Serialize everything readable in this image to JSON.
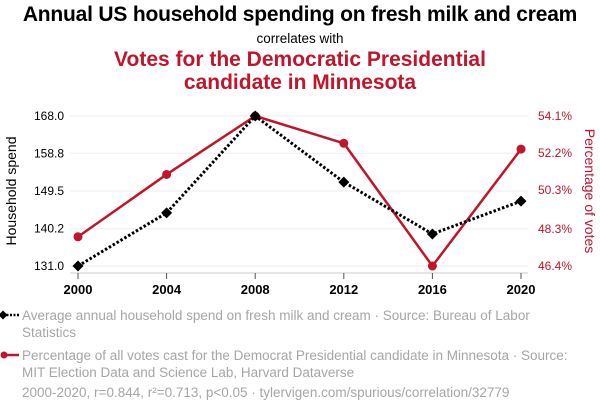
{
  "chart_data": {
    "type": "line",
    "title": "Annual US household spending on fresh milk and cream",
    "connector": "correlates with",
    "subtitle": "Votes for the Democratic Presidential candidate in Minnesota",
    "x": [
      2000,
      2004,
      2008,
      2012,
      2016,
      2020
    ],
    "x_tick_labels": [
      "2000",
      "2004",
      "2008",
      "2012",
      "2016",
      "2020"
    ],
    "series": [
      {
        "name": "Average annual household spend on fresh milk and cream",
        "axis": "left",
        "color": "#000000",
        "style": "dotted",
        "marker": "diamond",
        "values": [
          131.0,
          144.1,
          168.0,
          151.7,
          138.9,
          147.0
        ]
      },
      {
        "name": "Percentage of all votes cast for the Democrat Presidential candidate in Minnesota",
        "axis": "right",
        "color": "#c0152a",
        "style": "solid",
        "marker": "circle",
        "values": [
          47.9,
          51.1,
          54.1,
          52.7,
          46.4,
          52.4
        ]
      }
    ],
    "left_axis": {
      "label": "Household spend",
      "ylim": [
        131.0,
        168.0
      ],
      "ticks": [
        131.0,
        140.2,
        149.5,
        158.8,
        168.0
      ],
      "tick_labels": [
        "131.0",
        "140.2",
        "149.5",
        "158.8",
        "168.0"
      ]
    },
    "right_axis": {
      "label": "Percentage of votes",
      "ylim": [
        46.4,
        54.1
      ],
      "ticks": [
        46.4,
        48.3,
        50.3,
        52.2,
        54.1
      ],
      "tick_labels": [
        "46.4%",
        "48.3%",
        "50.3%",
        "52.2%",
        "54.1%"
      ]
    },
    "grid": true,
    "legend_placement": "bottom"
  },
  "legend": {
    "items": [
      {
        "label": "Average annual household spend on fresh milk and cream · Source: Bureau of Labor Statistics"
      },
      {
        "label": "Percentage of all votes cast for the Democrat Presidential candidate in Minnesota · Source: MIT Election Data and Science Lab, Harvard Dataverse"
      }
    ],
    "footer": "2000-2020, r=0.844, r²=0.713, p<0.05 · tylervigen.com/spurious/correlation/32779"
  }
}
